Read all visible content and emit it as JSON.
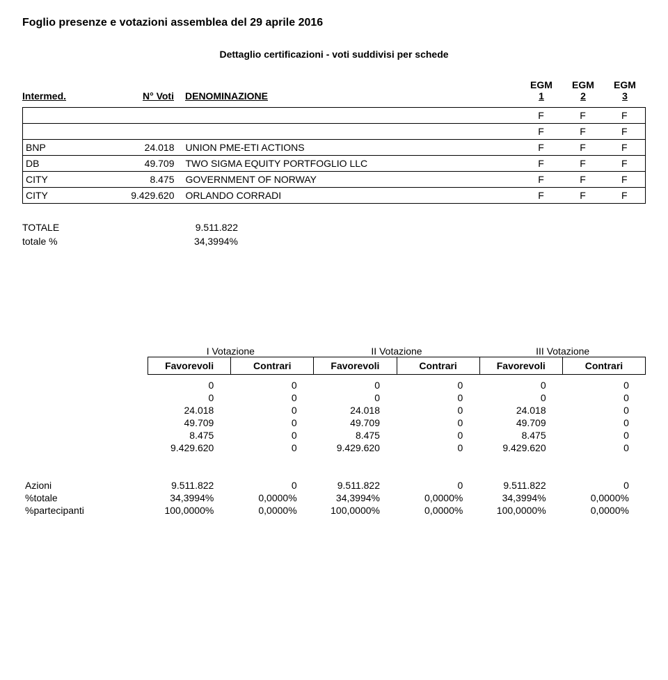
{
  "title": "Foglio presenze e votazioni assemblea del 29 aprile 2016",
  "subtitle": "Dettaglio certificazioni - voti suddivisi per schede",
  "columns": {
    "intermed": "Intermed.",
    "voti": "N° Voti",
    "denom": "DENOMINAZIONE",
    "egm1_top": "EGM",
    "egm1_bot": "1",
    "egm2_top": "EGM",
    "egm2_bot": "2",
    "egm3_top": "EGM",
    "egm3_bot": "3"
  },
  "rows": [
    {
      "intermed": "",
      "voti": "",
      "denom": "",
      "e1": "F",
      "e2": "F",
      "e3": "F"
    },
    {
      "intermed": "",
      "voti": "",
      "denom": "",
      "e1": "F",
      "e2": "F",
      "e3": "F"
    },
    {
      "intermed": "BNP",
      "voti": "24.018",
      "denom": "UNION PME-ETI ACTIONS",
      "e1": "F",
      "e2": "F",
      "e3": "F"
    },
    {
      "intermed": "DB",
      "voti": "49.709",
      "denom": "TWO SIGMA EQUITY PORTFOGLIO LLC",
      "e1": "F",
      "e2": "F",
      "e3": "F"
    },
    {
      "intermed": "CITY",
      "voti": "8.475",
      "denom": "GOVERNMENT OF NORWAY",
      "e1": "F",
      "e2": "F",
      "e3": "F"
    },
    {
      "intermed": "CITY",
      "voti": "9.429.620",
      "denom": "ORLANDO CORRADI",
      "e1": "F",
      "e2": "F",
      "e3": "F"
    }
  ],
  "totals": {
    "label_totale": "TOTALE",
    "value_totale": "9.511.822",
    "label_pct": "totale %",
    "value_pct": "34,3994%"
  },
  "votazione": {
    "headers": [
      "I Votazione",
      "II Votazione",
      "III Votazione"
    ],
    "sub": [
      "Favorevoli",
      "Contrari",
      "Favorevoli",
      "Contrari",
      "Favorevoli",
      "Contrari"
    ],
    "data": [
      [
        "0",
        "0",
        "0",
        "0",
        "0",
        "0"
      ],
      [
        "0",
        "0",
        "0",
        "0",
        "0",
        "0"
      ],
      [
        "24.018",
        "0",
        "24.018",
        "0",
        "24.018",
        "0"
      ],
      [
        "49.709",
        "0",
        "49.709",
        "0",
        "49.709",
        "0"
      ],
      [
        "8.475",
        "0",
        "8.475",
        "0",
        "8.475",
        "0"
      ],
      [
        "9.429.620",
        "0",
        "9.429.620",
        "0",
        "9.429.620",
        "0"
      ]
    ]
  },
  "summary": {
    "rows": [
      {
        "label": "Azioni",
        "cells": [
          "9.511.822",
          "0",
          "9.511.822",
          "0",
          "9.511.822",
          "0"
        ]
      },
      {
        "label": "%totale",
        "cells": [
          "34,3994%",
          "0,0000%",
          "34,3994%",
          "0,0000%",
          "34,3994%",
          "0,0000%"
        ]
      },
      {
        "label": "%partecipanti",
        "cells": [
          "100,0000%",
          "0,0000%",
          "100,0000%",
          "0,0000%",
          "100,0000%",
          "0,0000%"
        ]
      }
    ]
  },
  "styling": {
    "background_color": "#ffffff",
    "text_color": "#000000",
    "border_color": "#000000",
    "title_fontsize": 16,
    "body_fontsize": 14,
    "font_family": "Arial"
  }
}
